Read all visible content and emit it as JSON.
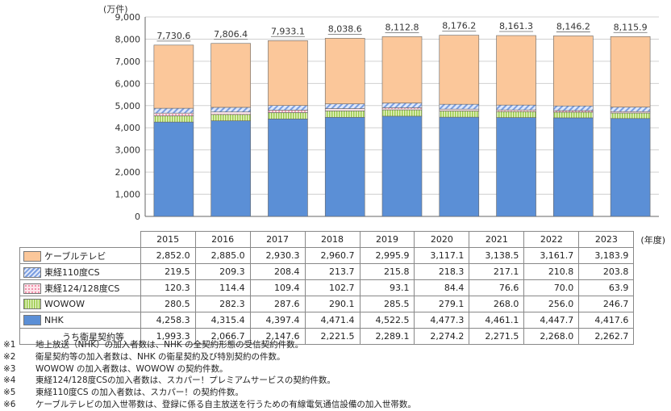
{
  "chart_data": {
    "type": "bar",
    "stacked": true,
    "unit_label": "(万件)",
    "year_label": "(年度)",
    "categories": [
      "2015",
      "2016",
      "2017",
      "2018",
      "2019",
      "2020",
      "2021",
      "2022",
      "2023"
    ],
    "ylim": [
      0,
      9000
    ],
    "yticks": [
      "0",
      "1,000",
      "2,000",
      "3,000",
      "4,000",
      "5,000",
      "6,000",
      "7,000",
      "8,000",
      "9,000"
    ],
    "totals": [
      "7,730.6",
      "7,806.4",
      "7,933.1",
      "8,038.6",
      "8,112.8",
      "8,176.2",
      "8,161.3",
      "8,146.2",
      "8,115.9"
    ],
    "series": [
      {
        "name": "NHK",
        "color": "#5b8fd6",
        "pattern": "solid",
        "values": [
          4258.3,
          4315.4,
          4397.4,
          4471.4,
          4522.5,
          4477.3,
          4461.1,
          4447.7,
          4417.6
        ],
        "labels": [
          "4,258.3",
          "4,315.4",
          "4,397.4",
          "4,471.4",
          "4,522.5",
          "4,477.3",
          "4,461.1",
          "4,447.7",
          "4,417.6"
        ]
      },
      {
        "name": "WOWOW",
        "color": "#b5d96a",
        "pattern": "vstripe",
        "values": [
          280.5,
          282.3,
          287.6,
          290.1,
          285.5,
          279.1,
          268.0,
          256.0,
          246.7
        ],
        "labels": [
          "280.5",
          "282.3",
          "287.6",
          "290.1",
          "285.5",
          "279.1",
          "268.0",
          "256.0",
          "246.7"
        ]
      },
      {
        "name": "東経124/128度CS",
        "color": "#f4a3b6",
        "pattern": "dots",
        "values": [
          120.3,
          114.4,
          109.4,
          102.7,
          93.1,
          84.4,
          76.6,
          70.0,
          63.9
        ],
        "labels": [
          "120.3",
          "114.4",
          "109.4",
          "102.7",
          "93.1",
          "84.4",
          "76.6",
          "70.0",
          "63.9"
        ]
      },
      {
        "name": "東経110度CS",
        "color": "#8fb0e8",
        "pattern": "diag",
        "values": [
          219.5,
          209.3,
          208.4,
          213.7,
          215.8,
          218.3,
          217.1,
          210.8,
          203.8
        ],
        "labels": [
          "219.5",
          "209.3",
          "208.4",
          "213.7",
          "215.8",
          "218.3",
          "217.1",
          "210.8",
          "203.8"
        ]
      },
      {
        "name": "ケーブルテレビ",
        "color": "#fbc79a",
        "pattern": "solid",
        "values": [
          2852.0,
          2885.0,
          2930.3,
          2960.7,
          2995.9,
          3117.1,
          3138.5,
          3161.7,
          3183.9
        ],
        "labels": [
          "2,852.0",
          "2,885.0",
          "2,930.3",
          "2,960.7",
          "2,995.9",
          "3,117.1",
          "3,138.5",
          "3,161.7",
          "3,183.9"
        ]
      }
    ],
    "subrow": {
      "name": "うち衛星契約等",
      "labels": [
        "1,993.3",
        "2,066.7",
        "2,147.6",
        "2,221.5",
        "2,289.1",
        "2,274.2",
        "2,271.5",
        "2,268.0",
        "2,262.7"
      ]
    }
  },
  "notes": [
    {
      "mark": "※1",
      "text": "地上放送（NHK）の加入者数は、NHK の全契約形態の受信契約件数。"
    },
    {
      "mark": "※2",
      "text": "衛星契約等の加入者数は、NHK の衛星契約及び特別契約の件数。"
    },
    {
      "mark": "※3",
      "text": "WOWOW の加入者数は、WOWOW の契約件数。"
    },
    {
      "mark": "※4",
      "text": "東経124/128度CSの加入者数は、スカパー！プレミアムサービスの契約件数。"
    },
    {
      "mark": "※5",
      "text": "東経110度CS の加入者数は、スカパー！の契約件数。"
    },
    {
      "mark": "※6",
      "text": "ケーブルテレビの加入世帯数は、登録に係る自主放送を行うための有線電気通信設備の加入世帯数。"
    }
  ]
}
